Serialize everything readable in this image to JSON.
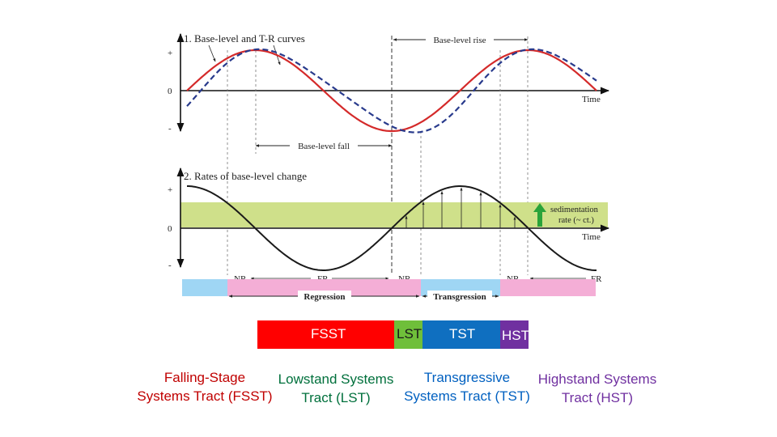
{
  "panel1": {
    "title": "1. Base-level and T-R curves",
    "plus": "+",
    "zero": "0",
    "minus": "-",
    "time": "Time",
    "rise": "Base-level rise",
    "fall": "Base-level fall"
  },
  "panel2": {
    "title": "2. Rates of base-level change",
    "plus": "+",
    "zero": "0",
    "minus": "-",
    "time": "Time",
    "sed_line1": "sedimentation",
    "sed_line2": "rate (~ ct.)",
    "nr": "NR",
    "fr": "FR",
    "regression": "Regression",
    "transgression": "Transgression"
  },
  "bars": {
    "fsst": "FSST",
    "lst": "LST",
    "tst": "TST",
    "hst": "HST"
  },
  "tracts": {
    "fsst_l1": "Falling-Stage",
    "fsst_l2": "Systems Tract (FSST)",
    "lst_l1": "Lowstand Systems",
    "lst_l2": "Tract (LST)",
    "tst_l1": "Transgressive",
    "tst_l2": "Systems Tract (TST)",
    "hst_l1": "Highstand Systems",
    "hst_l2": "Tract (HST)"
  },
  "colors": {
    "red_curve": "#d42a2a",
    "blue_curve": "#283a8c",
    "green_band": "#cfe08a",
    "blue_band": "#9fd6f4",
    "pink_band": "#f4aed6",
    "arrow_green": "#2aa33a",
    "fsst": "#ff0000",
    "lst": "#6fbf3a",
    "tst": "#0f6fc0",
    "hst": "#7030a0",
    "fsst_text": "#c00000",
    "lst_text": "#00703c",
    "tst_text": "#0060c0",
    "hst_text": "#7030a0"
  }
}
